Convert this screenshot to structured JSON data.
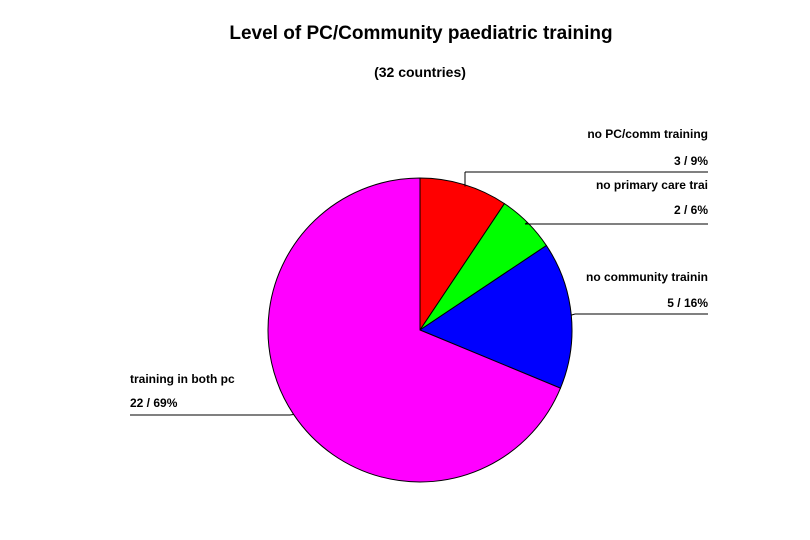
{
  "chart_data": {
    "type": "pie",
    "title": "Level of PC/Community paediatric training",
    "subtitle": "(32 countries)",
    "slices": [
      {
        "label": "no PC/comm training",
        "value": 3,
        "value_label": "3 / 9%",
        "color": "#ff0000"
      },
      {
        "label": "no primary care trai",
        "value": 2,
        "value_label": "2 / 6%",
        "color": "#00ff00"
      },
      {
        "label": "no community trainin",
        "value": 5,
        "value_label": "5 / 16%",
        "color": "#0000ff"
      },
      {
        "label": "training in both pc",
        "value": 22,
        "value_label": "22 / 69%",
        "color": "#ff00ff"
      }
    ]
  }
}
